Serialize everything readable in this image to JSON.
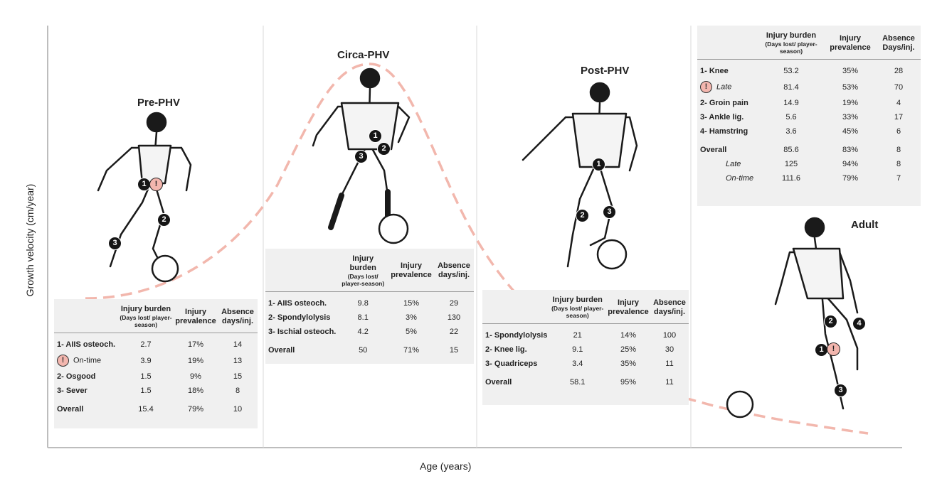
{
  "axes": {
    "y_label": "Growth velocity (cm/year)",
    "x_label": "Age (years)"
  },
  "colors": {
    "curve": "#f2b7ad",
    "table_bg": "#f0f0f0",
    "warning_fill": "#f3b6ae",
    "marker_fill": "#151515"
  },
  "stages": [
    {
      "title": "Pre-PHV",
      "headers": {
        "burden": "Injury burden",
        "burden_sub": "(Days lost/ player-season)",
        "prevalence": "Injury prevalence",
        "absence": "Absence days/inj."
      },
      "rows": [
        {
          "label": "1- AIIS osteoch.",
          "burden": "2.7",
          "prevalence": "17%",
          "absence": "14"
        },
        {
          "label": "On-time",
          "warning": "!",
          "burden": "3.9",
          "prevalence": "19%",
          "absence": "13"
        },
        {
          "label": "2- Osgood",
          "burden": "1.5",
          "prevalence": "9%",
          "absence": "15"
        },
        {
          "label": "3- Sever",
          "burden": "1.5",
          "prevalence": "18%",
          "absence": "8"
        },
        {
          "label": "Overall",
          "burden": "15.4",
          "prevalence": "79%",
          "absence": "10"
        }
      ],
      "markers": [
        "1",
        "!",
        "2",
        "3"
      ]
    },
    {
      "title": "Circa-PHV",
      "headers": {
        "burden": "Injury burden",
        "burden_sub": "(Days lost/ player-season)",
        "prevalence": "Injury prevalence",
        "absence": "Absence days/inj."
      },
      "rows": [
        {
          "label": "1- AIIS osteoch.",
          "burden": "9.8",
          "prevalence": "15%",
          "absence": "29"
        },
        {
          "label": "2- Spondylolysis",
          "burden": "8.1",
          "prevalence": "3%",
          "absence": "130"
        },
        {
          "label": "3- Ischial osteoch.",
          "burden": "4.2",
          "prevalence": "5%",
          "absence": "22"
        },
        {
          "label": "Overall",
          "burden": "50",
          "prevalence": "71%",
          "absence": "15"
        }
      ],
      "markers": [
        "1",
        "2",
        "3"
      ]
    },
    {
      "title": "Post-PHV",
      "headers": {
        "burden": "Injury burden",
        "burden_sub": "(Days lost/ player-season)",
        "prevalence": "Injury prevalence",
        "absence": "Absence days/inj."
      },
      "rows": [
        {
          "label": "1- Spondylolysis",
          "burden": "21",
          "prevalence": "14%",
          "absence": "100"
        },
        {
          "label": "2- Knee lig.",
          "burden": "9.1",
          "prevalence": "25%",
          "absence": "30"
        },
        {
          "label": "3- Quadriceps",
          "burden": "3.4",
          "prevalence": "35%",
          "absence": "11"
        },
        {
          "label": "Overall",
          "burden": "58.1",
          "prevalence": "95%",
          "absence": "11"
        }
      ],
      "markers": [
        "1",
        "2",
        "3"
      ]
    },
    {
      "title": "Adult",
      "headers": {
        "burden": "Injury burden",
        "burden_sub": "(Days lost/ player-season)",
        "prevalence": "Injury prevalence",
        "absence": "Absence Days/inj."
      },
      "rows": [
        {
          "label": "1- Knee",
          "burden": "53.2",
          "prevalence": "35%",
          "absence": "28"
        },
        {
          "label": "Late",
          "warning": "!",
          "burden": "81.4",
          "prevalence": "53%",
          "absence": "70"
        },
        {
          "label": "2- Groin pain",
          "burden": "14.9",
          "prevalence": "19%",
          "absence": "4"
        },
        {
          "label": "3- Ankle lig.",
          "burden": "5.6",
          "prevalence": "33%",
          "absence": "17"
        },
        {
          "label": "4- Hamstring",
          "burden": "3.6",
          "prevalence": "45%",
          "absence": "6"
        },
        {
          "label": "Overall",
          "burden": "85.6",
          "prevalence": "83%",
          "absence": "8"
        },
        {
          "label": "Late",
          "sub": true,
          "burden": "125",
          "prevalence": "94%",
          "absence": "8"
        },
        {
          "label": "On-time",
          "sub": true,
          "burden": "111.6",
          "prevalence": "79%",
          "absence": "7"
        }
      ],
      "markers": [
        "2",
        "4",
        "1",
        "!",
        "3"
      ]
    }
  ]
}
